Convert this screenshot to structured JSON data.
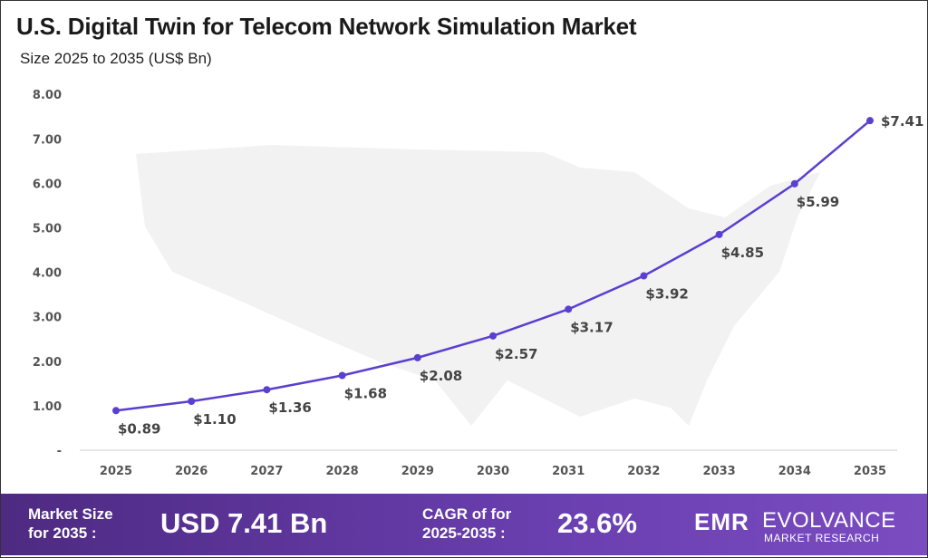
{
  "title": "U.S. Digital Twin for Telecom Network Simulation Market",
  "subtitle": "Size 2025 to 2035 (US$ Bn)",
  "chart_data": {
    "type": "line",
    "title": "U.S. Digital Twin for Telecom Network Simulation Market",
    "subtitle": "Size 2025 to 2035 (US$ Bn)",
    "categories": [
      "2025",
      "2026",
      "2027",
      "2028",
      "2029",
      "2030",
      "2031",
      "2032",
      "2033",
      "2034",
      "2035"
    ],
    "values": [
      0.89,
      1.1,
      1.36,
      1.68,
      2.08,
      2.57,
      3.17,
      3.92,
      4.85,
      5.99,
      7.41
    ],
    "data_labels": [
      "$0.89",
      "$1.10",
      "$1.36",
      "$1.68",
      "$2.08",
      "$2.57",
      "$3.17",
      "$3.92",
      "$4.85",
      "$5.99",
      "$7.41"
    ],
    "y_ticks": [
      "-",
      "1.00",
      "2.00",
      "3.00",
      "4.00",
      "5.00",
      "6.00",
      "7.00",
      "8.00"
    ],
    "ylim": [
      0,
      8
    ],
    "grid": false,
    "line_color": "#5a3fd0"
  },
  "banner": {
    "market_size_label_1": "Market Size",
    "market_size_label_2": "for 2035 :",
    "market_size_value": "USD 7.41 Bn",
    "cagr_label_1": "CAGR of for",
    "cagr_label_2": "2025-2035 :",
    "cagr_value": "23.6%",
    "logo_mark": "EMR",
    "logo_brand": "EVOLVANCE",
    "logo_sub": "MARKET RESEARCH"
  }
}
